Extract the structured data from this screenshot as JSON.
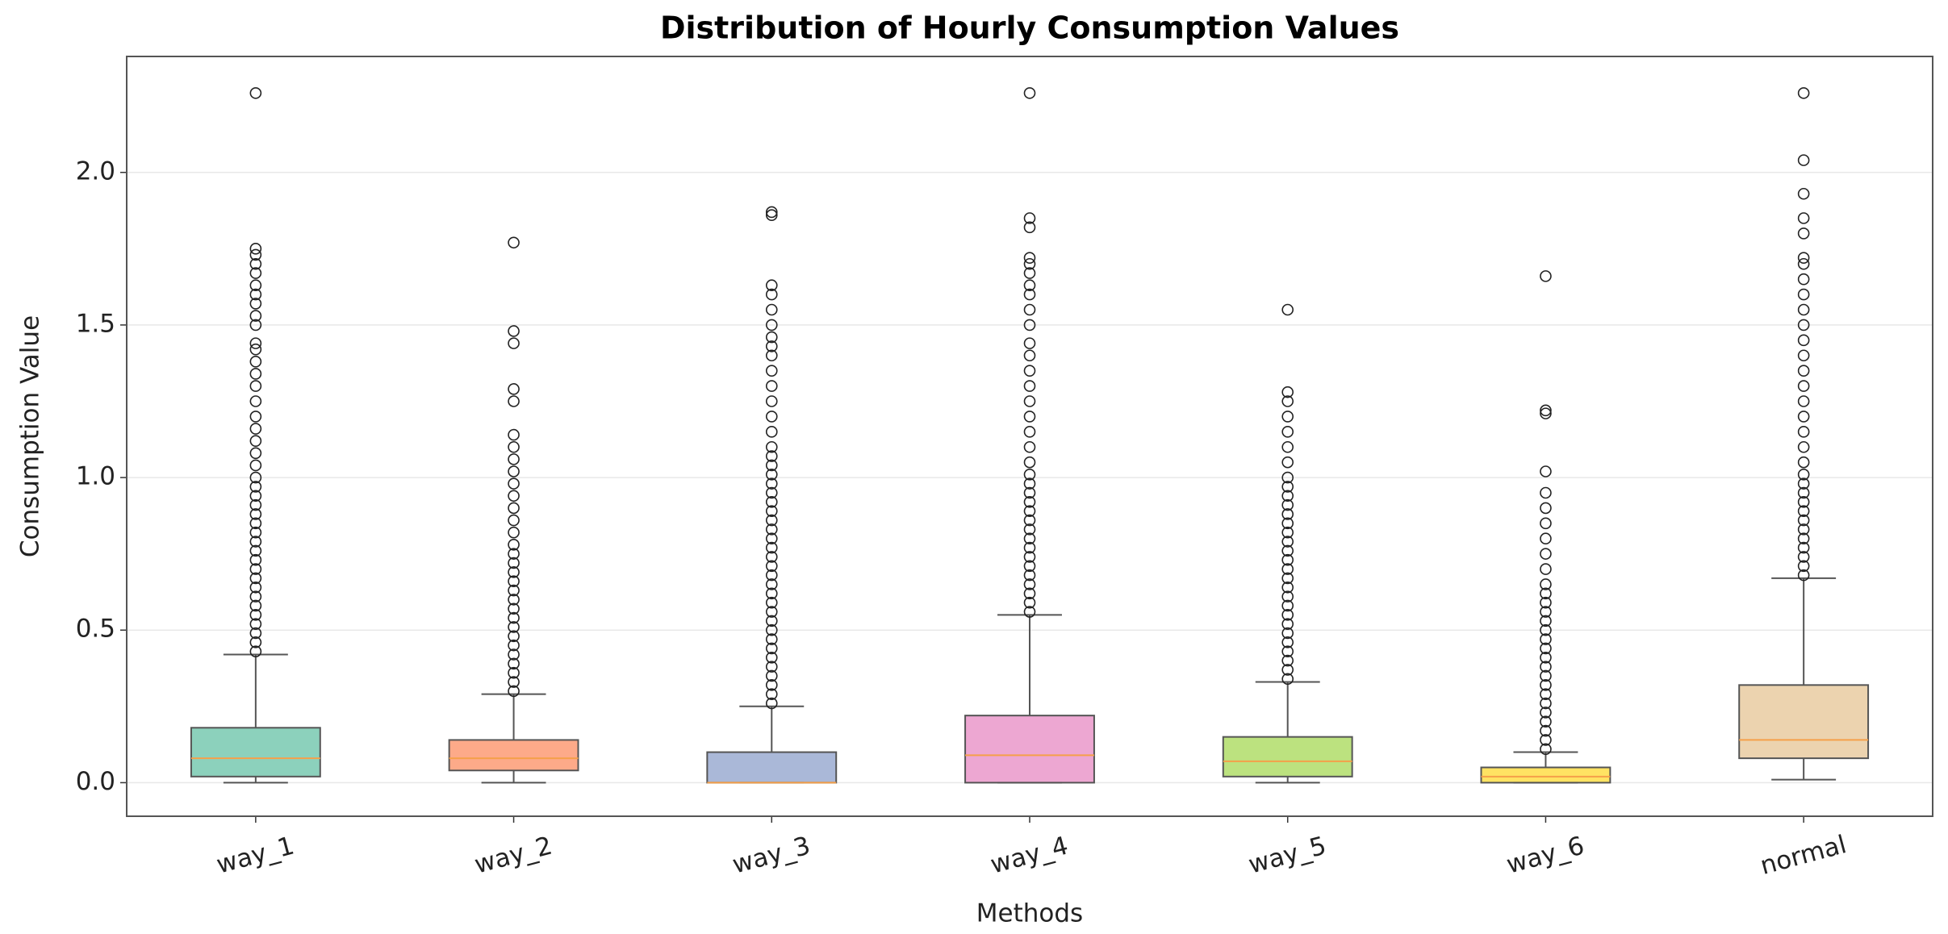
{
  "chart_data": {
    "type": "box",
    "title": "Distribution of Hourly Consumption Values",
    "x_label": "Methods",
    "y_label": "Consumption Value",
    "categories": [
      "way_1",
      "way_2",
      "way_3",
      "way_4",
      "way_5",
      "way_6",
      "normal"
    ],
    "colors": [
      "#66c2a5",
      "#fc8d62",
      "#8da0cb",
      "#e78ac3",
      "#a6d854",
      "#ffd92f",
      "#e5c494"
    ],
    "median_color": "#f5a04a",
    "boxes": [
      {
        "whislo": 0,
        "q1": 0.02,
        "med": 0.08,
        "q3": 0.18,
        "whishi": 0.42,
        "fliers": [
          0.43,
          0.46,
          0.49,
          0.52,
          0.55,
          0.58,
          0.61,
          0.64,
          0.67,
          0.7,
          0.73,
          0.76,
          0.79,
          0.82,
          0.85,
          0.88,
          0.91,
          0.94,
          0.97,
          1.0,
          1.04,
          1.08,
          1.12,
          1.16,
          1.2,
          1.25,
          1.3,
          1.34,
          1.38,
          1.42,
          1.44,
          1.5,
          1.53,
          1.57,
          1.6,
          1.63,
          1.67,
          1.7,
          1.73,
          1.75,
          2.26
        ]
      },
      {
        "whislo": 0,
        "q1": 0.04,
        "med": 0.08,
        "q3": 0.14,
        "whishi": 0.29,
        "fliers": [
          0.3,
          0.33,
          0.36,
          0.39,
          0.42,
          0.45,
          0.48,
          0.51,
          0.54,
          0.57,
          0.6,
          0.63,
          0.66,
          0.69,
          0.72,
          0.75,
          0.78,
          0.82,
          0.86,
          0.9,
          0.94,
          0.98,
          1.02,
          1.06,
          1.1,
          1.14,
          1.25,
          1.29,
          1.44,
          1.48,
          1.77
        ]
      },
      {
        "whislo": 0,
        "q1": 0,
        "med": 0,
        "q3": 0.1,
        "whishi": 0.25,
        "fliers": [
          0.26,
          0.29,
          0.32,
          0.35,
          0.38,
          0.41,
          0.44,
          0.47,
          0.5,
          0.53,
          0.56,
          0.59,
          0.62,
          0.65,
          0.68,
          0.71,
          0.74,
          0.77,
          0.8,
          0.83,
          0.86,
          0.89,
          0.92,
          0.95,
          0.98,
          1.01,
          1.04,
          1.07,
          1.1,
          1.15,
          1.2,
          1.25,
          1.3,
          1.35,
          1.4,
          1.43,
          1.46,
          1.5,
          1.55,
          1.6,
          1.63,
          1.86,
          1.87
        ]
      },
      {
        "whislo": 0,
        "q1": 0,
        "med": 0.09,
        "q3": 0.22,
        "whishi": 0.55,
        "fliers": [
          0.56,
          0.59,
          0.62,
          0.65,
          0.68,
          0.71,
          0.74,
          0.77,
          0.8,
          0.83,
          0.86,
          0.89,
          0.92,
          0.95,
          0.98,
          1.01,
          1.05,
          1.1,
          1.15,
          1.2,
          1.25,
          1.3,
          1.35,
          1.4,
          1.44,
          1.5,
          1.55,
          1.6,
          1.63,
          1.67,
          1.7,
          1.72,
          1.82,
          1.85,
          2.26
        ]
      },
      {
        "whislo": 0,
        "q1": 0.02,
        "med": 0.07,
        "q3": 0.15,
        "whishi": 0.33,
        "fliers": [
          0.34,
          0.37,
          0.4,
          0.43,
          0.46,
          0.49,
          0.52,
          0.55,
          0.58,
          0.61,
          0.64,
          0.67,
          0.7,
          0.73,
          0.76,
          0.79,
          0.82,
          0.85,
          0.88,
          0.91,
          0.94,
          0.97,
          1.0,
          1.05,
          1.1,
          1.15,
          1.2,
          1.25,
          1.28,
          1.55
        ]
      },
      {
        "whislo": 0,
        "q1": 0,
        "med": 0.02,
        "q3": 0.05,
        "whishi": 0.1,
        "fliers": [
          0.11,
          0.14,
          0.17,
          0.2,
          0.23,
          0.26,
          0.29,
          0.32,
          0.35,
          0.38,
          0.41,
          0.44,
          0.47,
          0.5,
          0.53,
          0.56,
          0.59,
          0.62,
          0.65,
          0.7,
          0.75,
          0.8,
          0.85,
          0.9,
          0.95,
          1.02,
          1.21,
          1.22,
          1.66
        ]
      },
      {
        "whislo": 0.01,
        "q1": 0.08,
        "med": 0.14,
        "q3": 0.32,
        "whishi": 0.67,
        "fliers": [
          0.68,
          0.71,
          0.74,
          0.77,
          0.8,
          0.83,
          0.86,
          0.89,
          0.92,
          0.95,
          0.98,
          1.01,
          1.05,
          1.1,
          1.15,
          1.2,
          1.25,
          1.3,
          1.35,
          1.4,
          1.45,
          1.5,
          1.55,
          1.6,
          1.65,
          1.7,
          1.72,
          1.8,
          1.85,
          1.93,
          2.04,
          2.26
        ]
      }
    ],
    "ylim": [
      -0.11,
      2.38
    ],
    "yticks": [
      {
        "value": 0,
        "label": "0.0"
      },
      0.5,
      {
        "value": 1,
        "label": "1.0"
      },
      1.5,
      {
        "value": 2,
        "label": "2.0"
      }
    ],
    "grid": true
  }
}
